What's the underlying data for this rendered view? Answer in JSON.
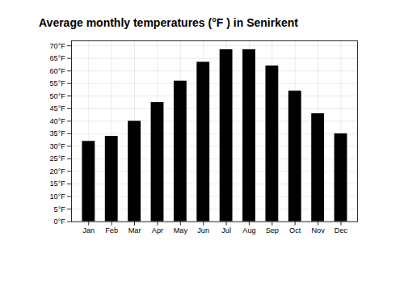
{
  "chart_data": {
    "type": "bar",
    "title": "Average monthly temperatures (°F ) in Senirkent",
    "categories": [
      "Jan",
      "Feb",
      "Mar",
      "Apr",
      "May",
      "Jun",
      "Jul",
      "Aug",
      "Sep",
      "Oct",
      "Nov",
      "Dec"
    ],
    "values": [
      32,
      34,
      40,
      47.5,
      56,
      63.5,
      68.5,
      68.5,
      62,
      52,
      43,
      35
    ],
    "ylim": [
      0,
      72
    ],
    "yticks": [
      {
        "value": 0,
        "label": "0°F"
      },
      {
        "value": 5,
        "label": "5°F"
      },
      {
        "value": 10,
        "label": "10°F"
      },
      {
        "value": 15,
        "label": "15°F"
      },
      {
        "value": 20,
        "label": "20°F"
      },
      {
        "value": 25,
        "label": "25°F"
      },
      {
        "value": 30,
        "label": "30°F"
      },
      {
        "value": 35,
        "label": "35°F"
      },
      {
        "value": 40,
        "label": "40°F"
      },
      {
        "value": 45,
        "label": "45°F"
      },
      {
        "value": 50,
        "label": "50°F"
      },
      {
        "value": 55,
        "label": "55°F"
      },
      {
        "value": 60,
        "label": "60°F"
      },
      {
        "value": 65,
        "label": "65°F"
      },
      {
        "value": 70,
        "label": "70°F"
      }
    ],
    "grid": true
  }
}
